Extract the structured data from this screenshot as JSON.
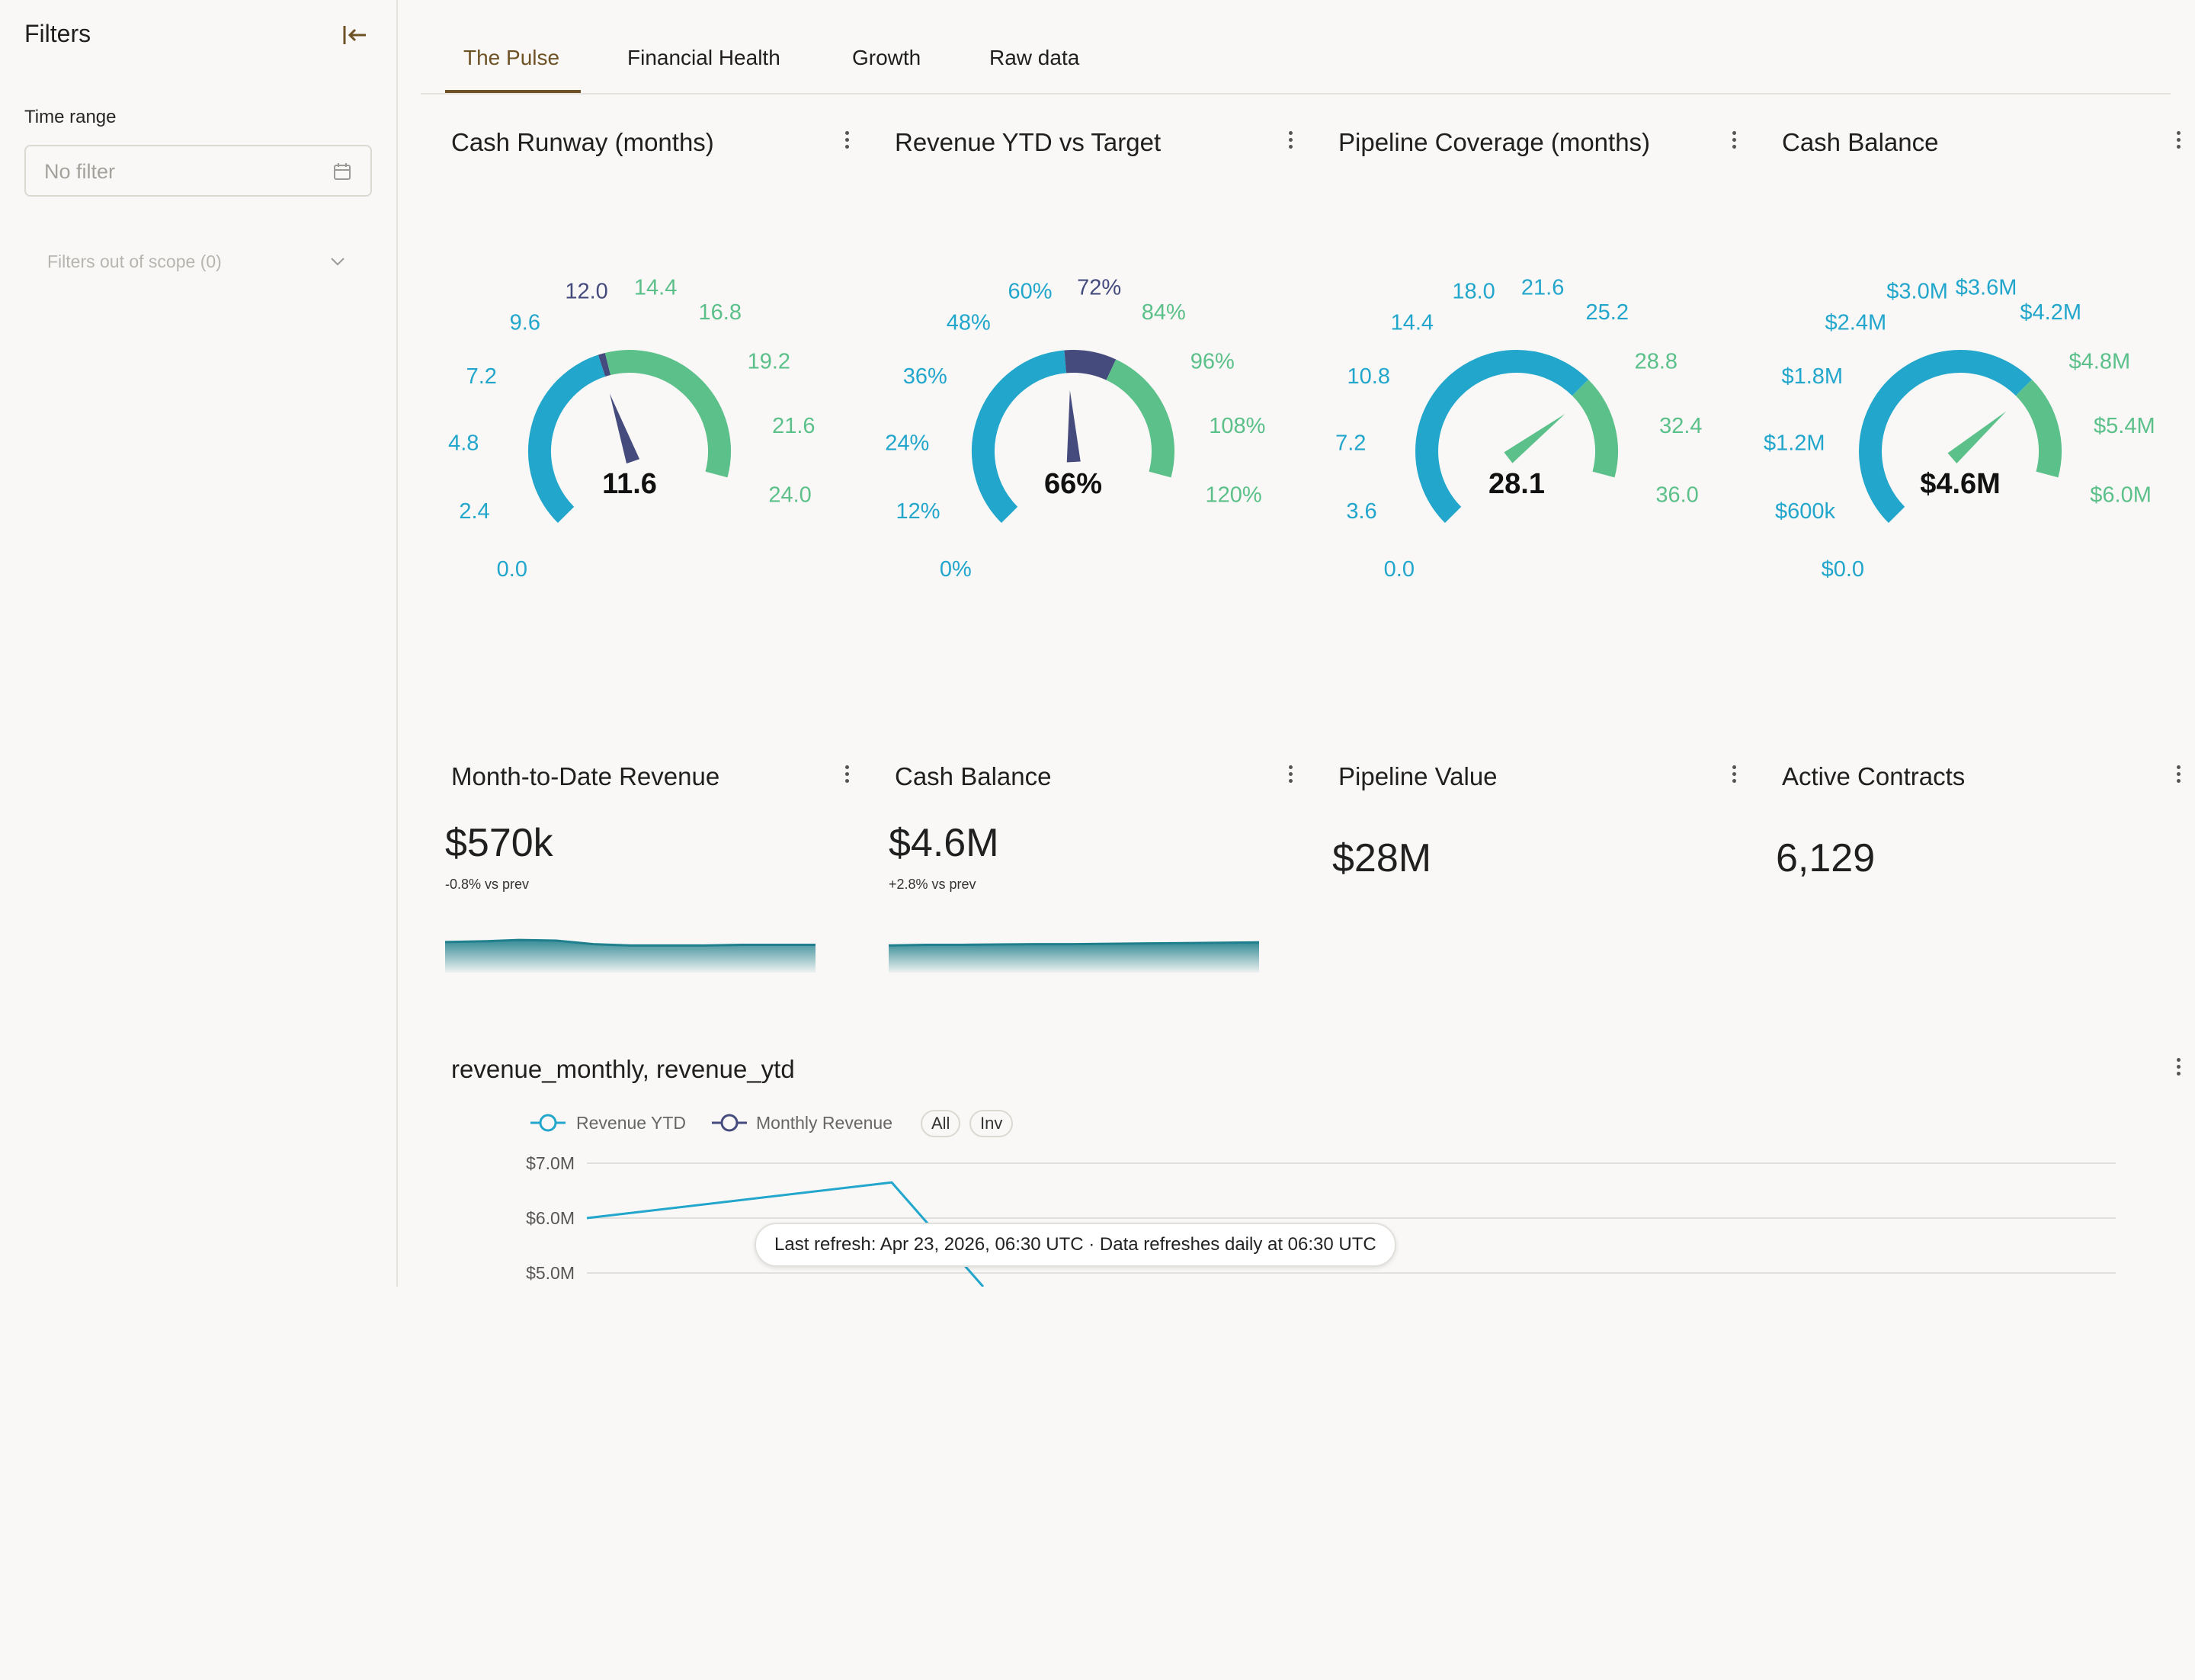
{
  "sidebar": {
    "title": "Filters",
    "time_range_label": "Time range",
    "time_range_placeholder": "No filter",
    "scope_label": "Filters out of scope (0)"
  },
  "tabs": [
    {
      "label": "The Pulse",
      "active": true
    },
    {
      "label": "Financial Health",
      "active": false
    },
    {
      "label": "Growth",
      "active": false
    },
    {
      "label": "Raw data",
      "active": false
    }
  ],
  "colors": {
    "blue": "#22a6cc",
    "navy": "#454b7d",
    "green": "#5cc08a",
    "teal": "#1f7f8c",
    "accent": "#6e5226"
  },
  "gauges": [
    {
      "title": "Cash Runway (months)",
      "value_label": "11.6",
      "value": 11.6,
      "min": 0,
      "max": 24,
      "ticks": [
        "0.0",
        "2.4",
        "4.8",
        "7.2",
        "9.6",
        "12.0",
        "14.4",
        "16.8",
        "19.2",
        "21.6",
        "24.0"
      ],
      "bands": [
        [
          0,
          11.7,
          "blue"
        ],
        [
          11.7,
          12.1,
          "navy"
        ],
        [
          12.1,
          24,
          "green"
        ]
      ],
      "needle_color": "navy"
    },
    {
      "title": "Revenue YTD vs Target",
      "value_label": "66%",
      "value": 66,
      "min": 0,
      "max": 120,
      "ticks": [
        "0%",
        "12%",
        "24%",
        "36%",
        "48%",
        "60%",
        "72%",
        "84%",
        "96%",
        "108%",
        "120%"
      ],
      "bands": [
        [
          0,
          65,
          "blue"
        ],
        [
          65,
          80,
          "navy"
        ],
        [
          80,
          120,
          "green"
        ]
      ],
      "needle_color": "navy"
    },
    {
      "title": "Pipeline Coverage (months)",
      "value_label": "28.1",
      "value": 28.1,
      "min": 0,
      "max": 36,
      "ticks": [
        "0.0",
        "3.6",
        "7.2",
        "10.8",
        "14.4",
        "18.0",
        "21.6",
        "25.2",
        "28.8",
        "32.4",
        "36.0"
      ],
      "bands": [
        [
          0,
          27,
          "blue"
        ],
        [
          27,
          36,
          "green"
        ]
      ],
      "needle_color": "green"
    },
    {
      "title": "Cash Balance",
      "value_label": "$4.6M",
      "value": 4.6,
      "min": 0,
      "max": 6,
      "ticks": [
        "$0.0",
        "$600k",
        "$1.2M",
        "$1.8M",
        "$2.4M",
        "$3.0M",
        "$3.6M",
        "$4.2M",
        "$4.8M",
        "$5.4M",
        "$6.0M"
      ],
      "bands": [
        [
          0,
          4.5,
          "blue"
        ],
        [
          4.5,
          6,
          "green"
        ]
      ],
      "needle_color": "green"
    }
  ],
  "kpis": [
    {
      "title": "Month-to-Date Revenue",
      "value": "$570k",
      "delta": "-0.8% vs prev",
      "spark": [
        0.55,
        0.56,
        0.58,
        0.57,
        0.52,
        0.5,
        0.5,
        0.5,
        0.51,
        0.51,
        0.51
      ]
    },
    {
      "title": "Cash Balance",
      "value": "$4.6M",
      "delta": "+2.8% vs prev",
      "spark": [
        0.5,
        0.51,
        0.51,
        0.515,
        0.52,
        0.52,
        0.525,
        0.53,
        0.535,
        0.54,
        0.545
      ]
    },
    {
      "title": "Pipeline Value",
      "value": "$28M",
      "delta": "",
      "spark": []
    },
    {
      "title": "Active Contracts",
      "value": "6,129",
      "delta": "",
      "spark": []
    }
  ],
  "line_card": {
    "title": "revenue_monthly, revenue_ytd",
    "legend": [
      "Revenue YTD",
      "Monthly Revenue"
    ],
    "pill_all": "All",
    "pill_inv": "Inv",
    "tooltip": "Last refresh: Apr 23, 2026, 06:30 UTC · Data refreshes daily at 06:30 UTC"
  },
  "chart_data": {
    "type": "line",
    "series": [
      {
        "name": "Revenue YTD",
        "x": [
          0,
          1,
          1.3
        ],
        "values": [
          6.0,
          6.65,
          4.75
        ]
      },
      {
        "name": "Monthly Revenue",
        "x": [],
        "values": []
      }
    ],
    "y_ticks": [
      "$7.0M",
      "$6.0M",
      "$5.0M"
    ],
    "ylim_visible": [
      5.0,
      7.0
    ]
  }
}
